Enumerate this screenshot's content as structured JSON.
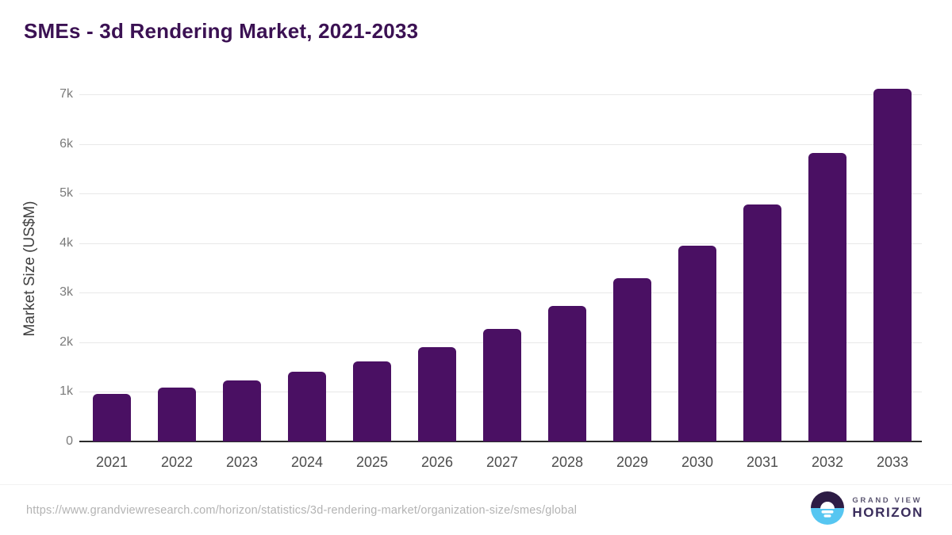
{
  "title": "SMEs - 3d Rendering Market, 2021-2033",
  "chart_data": {
    "type": "bar",
    "title": "SMEs - 3d Rendering Market, 2021-2033",
    "categories": [
      "2021",
      "2022",
      "2023",
      "2024",
      "2025",
      "2026",
      "2027",
      "2028",
      "2029",
      "2030",
      "2031",
      "2032",
      "2033"
    ],
    "values": [
      965,
      1085,
      1230,
      1400,
      1615,
      1910,
      2275,
      2740,
      3290,
      3950,
      4780,
      5820,
      7110
    ],
    "xlabel": "",
    "ylabel": "Market Size (US$M)",
    "ylim": [
      0,
      7300
    ],
    "ytick_interval": 1000,
    "yticks": [
      "0",
      "1k",
      "2k",
      "3k",
      "4k",
      "5k",
      "6k",
      "7k"
    ],
    "grid": true,
    "legend": false,
    "bar_color": "#4a1063"
  },
  "colors": {
    "title_text": "#3b1153",
    "bar": "#4a1063",
    "gridline": "#e8e8e8",
    "axis_line": "#2b2b2b",
    "tick_text": "#7b7b7b",
    "xtick_text": "#4c4c4c",
    "url_text": "#b3b3b3",
    "logo_dark": "#2d1c45",
    "logo_blue": "#56c6f1"
  },
  "footer": {
    "source_url": "https://www.grandviewresearch.com/horizon/statistics/3d-rendering-market/organization-size/smes/global",
    "brand": {
      "line1": "GRAND VIEW",
      "line2": "HORIZON"
    }
  }
}
